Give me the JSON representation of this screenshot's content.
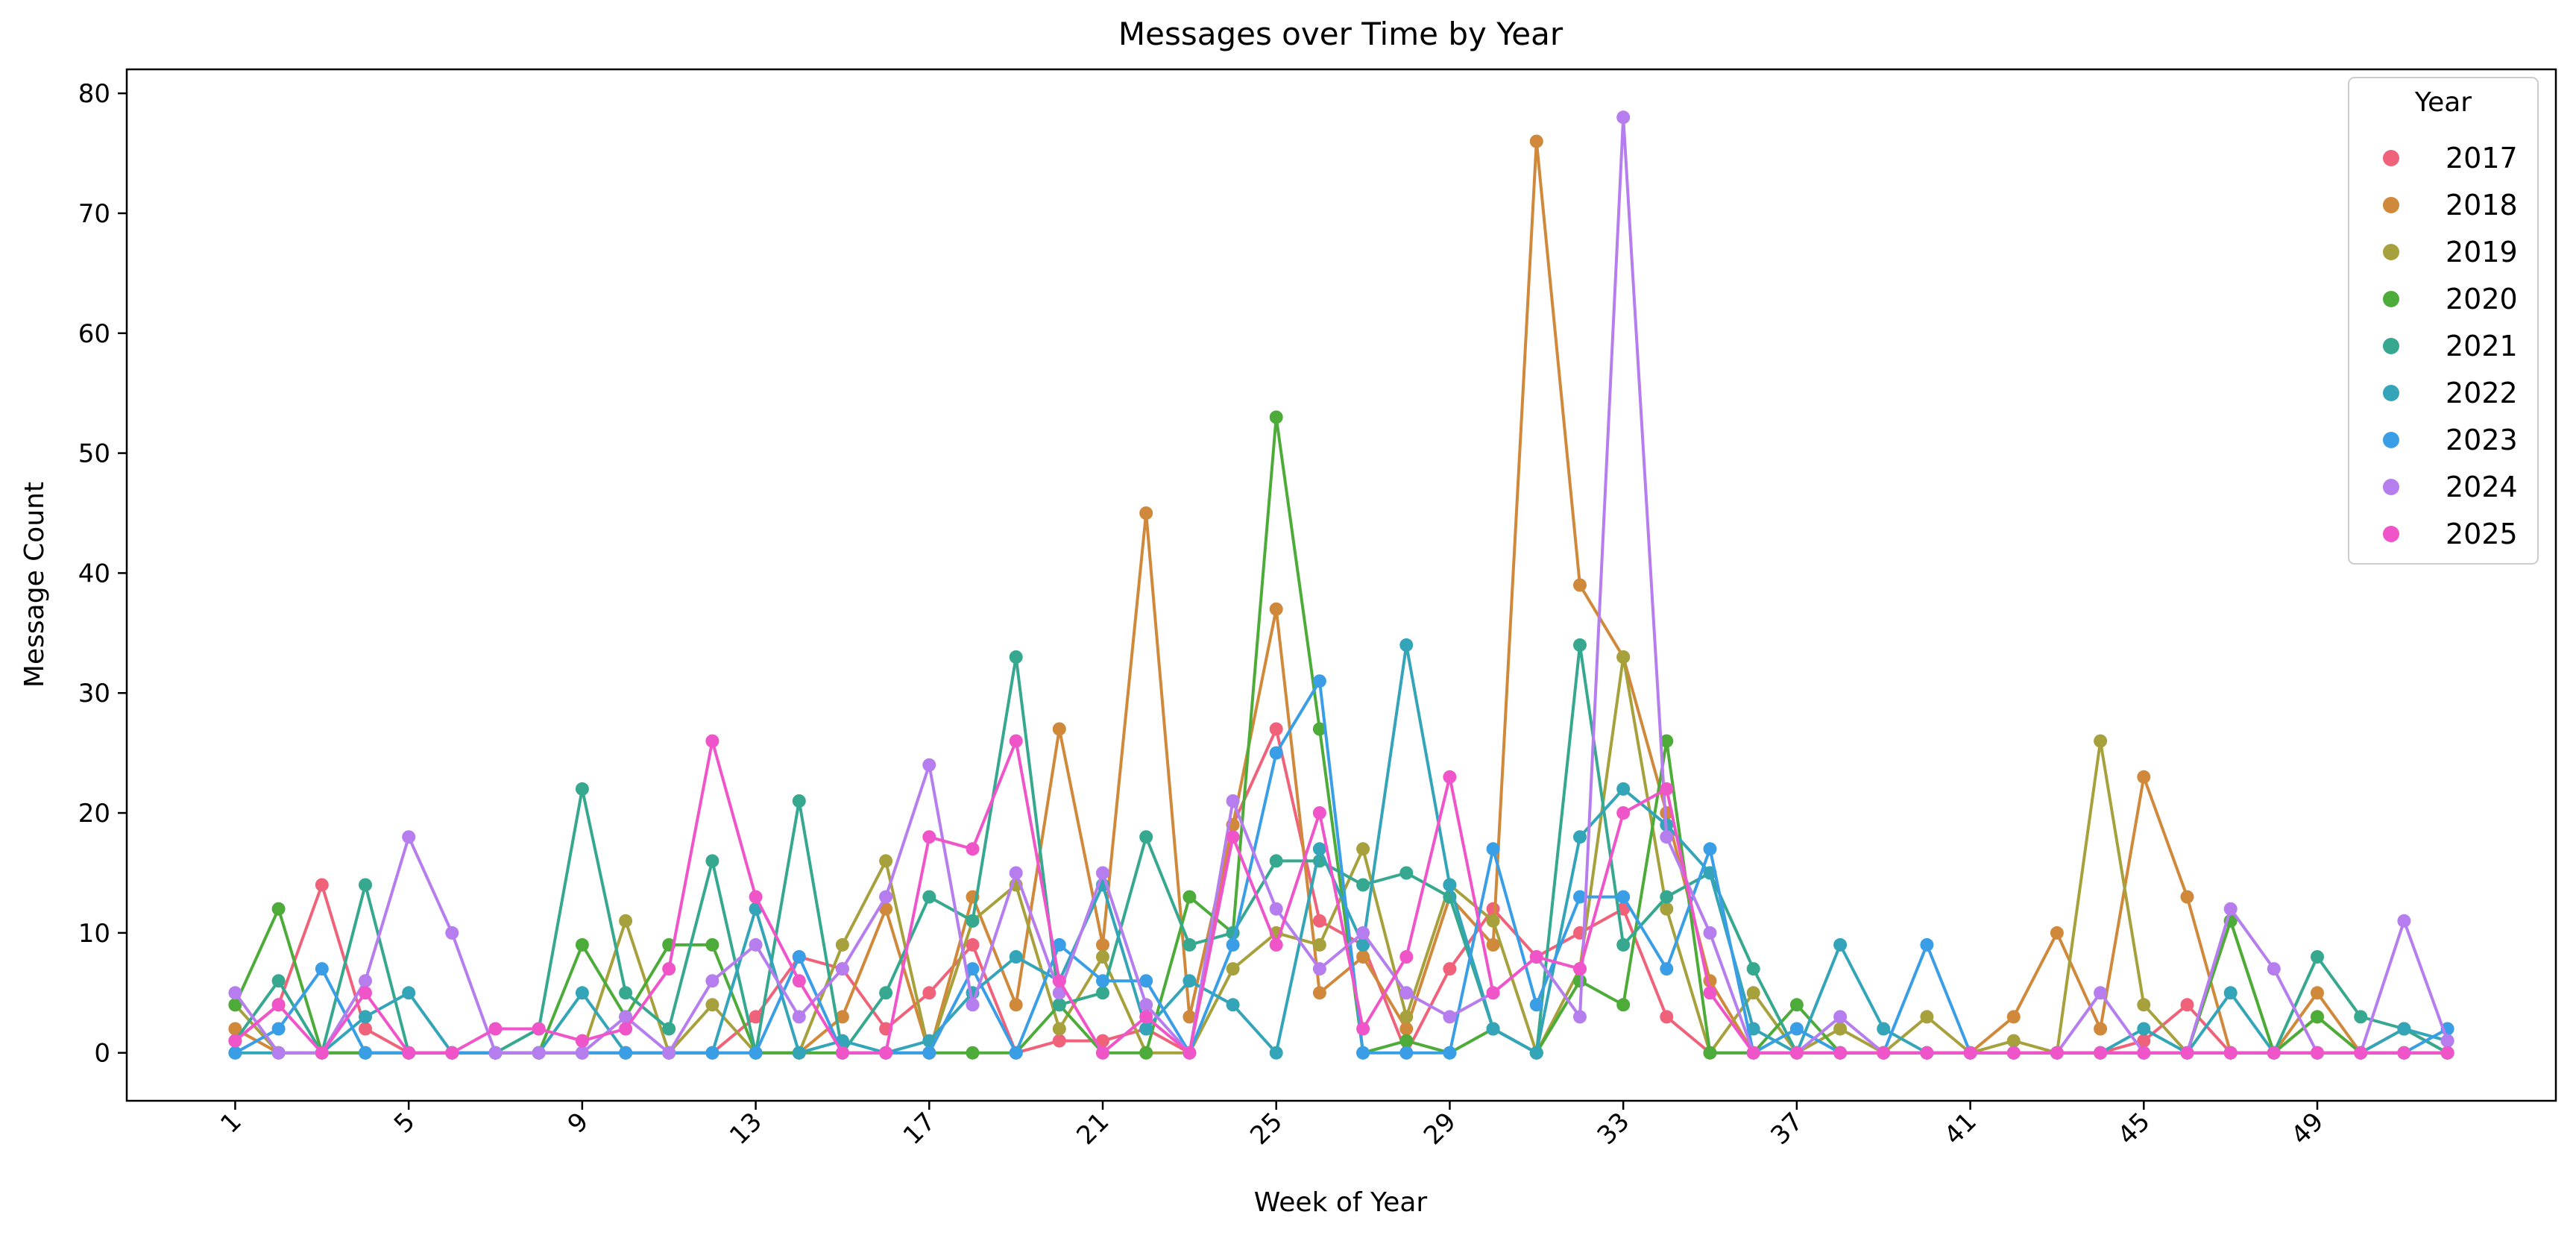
{
  "chart_data": {
    "type": "line",
    "title": "Messages over Time by Year",
    "xlabel": "Week of Year",
    "ylabel": "Message Count",
    "xlim": [
      -1.5,
      54.5
    ],
    "ylim": [
      -4,
      82
    ],
    "x_ticks": [
      1,
      5,
      9,
      13,
      17,
      21,
      25,
      29,
      33,
      37,
      41,
      45,
      49
    ],
    "x_tick_labels": [
      "1",
      "5",
      "9",
      "13",
      "17",
      "21",
      "25",
      "29",
      "33",
      "37",
      "41",
      "45",
      "49"
    ],
    "y_ticks": [
      0,
      10,
      20,
      30,
      40,
      50,
      60,
      70,
      80
    ],
    "y_tick_labels": [
      "0",
      "10",
      "20",
      "30",
      "40",
      "50",
      "60",
      "70",
      "80"
    ],
    "grid": false,
    "legend": {
      "title": "Year",
      "placement": "top-right"
    },
    "x": [
      1,
      2,
      3,
      4,
      5,
      6,
      7,
      8,
      9,
      10,
      11,
      12,
      13,
      14,
      15,
      16,
      17,
      18,
      19,
      20,
      21,
      22,
      23,
      24,
      25,
      26,
      27,
      28,
      29,
      30,
      31,
      32,
      33,
      34,
      35,
      36,
      37,
      38,
      39,
      40,
      41,
      42,
      43,
      44,
      45,
      46,
      47,
      48,
      49,
      50,
      51,
      52
    ],
    "series": [
      {
        "name": "2017",
        "color": "#f0627a",
        "values": [
          1,
          4,
          14,
          2,
          0,
          0,
          0,
          0,
          0,
          0,
          0,
          0,
          3,
          8,
          7,
          2,
          5,
          9,
          0,
          1,
          1,
          2,
          0,
          19,
          27,
          11,
          9,
          0,
          7,
          12,
          8,
          10,
          12,
          3,
          0,
          0,
          0,
          0,
          0,
          0,
          0,
          0,
          0,
          0,
          1,
          4,
          0,
          0,
          0,
          0,
          0,
          0
        ]
      },
      {
        "name": "2018",
        "color": "#d0883a",
        "values": [
          2,
          0,
          0,
          0,
          0,
          0,
          0,
          0,
          0,
          0,
          0,
          0,
          0,
          0,
          3,
          12,
          0,
          13,
          4,
          27,
          9,
          45,
          3,
          19,
          37,
          5,
          8,
          2,
          13,
          9,
          76,
          39,
          33,
          20,
          6,
          0,
          0,
          0,
          0,
          0,
          0,
          3,
          10,
          2,
          23,
          13,
          0,
          0,
          5,
          0,
          2,
          0
        ]
      },
      {
        "name": "2019",
        "color": "#a7a13d",
        "values": [
          4,
          0,
          0,
          0,
          0,
          0,
          0,
          0,
          0,
          11,
          0,
          4,
          0,
          0,
          9,
          16,
          0,
          11,
          14,
          2,
          8,
          0,
          0,
          7,
          10,
          9,
          17,
          3,
          14,
          11,
          0,
          7,
          33,
          12,
          0,
          5,
          0,
          2,
          0,
          3,
          0,
          1,
          0,
          26,
          4,
          0,
          11,
          0,
          3,
          0,
          0,
          0
        ]
      },
      {
        "name": "2020",
        "color": "#4dac39",
        "values": [
          4,
          12,
          0,
          0,
          0,
          0,
          0,
          0,
          9,
          3,
          9,
          9,
          0,
          0,
          0,
          0,
          0,
          0,
          0,
          4,
          0,
          0,
          13,
          10,
          53,
          27,
          0,
          1,
          0,
          2,
          0,
          6,
          4,
          26,
          0,
          0,
          4,
          0,
          0,
          0,
          0,
          0,
          0,
          0,
          0,
          0,
          11,
          0,
          3,
          0,
          0,
          0
        ]
      },
      {
        "name": "2021",
        "color": "#36a88f",
        "values": [
          1,
          6,
          0,
          14,
          0,
          0,
          0,
          2,
          22,
          5,
          2,
          16,
          0,
          21,
          0,
          5,
          13,
          11,
          33,
          4,
          5,
          18,
          9,
          10,
          16,
          16,
          14,
          15,
          13,
          2,
          0,
          34,
          9,
          13,
          15,
          7,
          0,
          0,
          0,
          0,
          0,
          0,
          0,
          0,
          0,
          0,
          0,
          0,
          8,
          3,
          2,
          0
        ]
      },
      {
        "name": "2022",
        "color": "#34a5b8",
        "values": [
          0,
          0,
          0,
          3,
          5,
          0,
          0,
          0,
          5,
          0,
          0,
          0,
          12,
          0,
          1,
          0,
          1,
          5,
          8,
          6,
          14,
          2,
          6,
          4,
          0,
          17,
          9,
          34,
          14,
          2,
          0,
          18,
          22,
          19,
          15,
          2,
          0,
          9,
          2,
          0,
          0,
          0,
          0,
          0,
          2,
          0,
          5,
          0,
          0,
          0,
          2,
          1
        ]
      },
      {
        "name": "2023",
        "color": "#3a9ee6",
        "values": [
          0,
          2,
          7,
          0,
          0,
          0,
          0,
          0,
          0,
          0,
          0,
          0,
          0,
          8,
          0,
          0,
          0,
          7,
          0,
          9,
          6,
          6,
          0,
          9,
          25,
          31,
          0,
          0,
          0,
          17,
          4,
          13,
          13,
          7,
          17,
          0,
          2,
          0,
          0,
          9,
          0,
          0,
          0,
          0,
          0,
          0,
          0,
          0,
          0,
          0,
          0,
          2
        ]
      },
      {
        "name": "2024",
        "color": "#b57ded",
        "values": [
          5,
          0,
          0,
          6,
          18,
          10,
          0,
          0,
          0,
          3,
          0,
          6,
          9,
          3,
          7,
          13,
          24,
          4,
          15,
          5,
          15,
          4,
          0,
          21,
          12,
          7,
          10,
          5,
          3,
          5,
          8,
          3,
          78,
          18,
          10,
          0,
          0,
          3,
          0,
          0,
          0,
          0,
          0,
          5,
          0,
          0,
          12,
          7,
          0,
          0,
          11,
          1
        ]
      },
      {
        "name": "2025",
        "color": "#ef55c9",
        "values": [
          1,
          4,
          0,
          5,
          0,
          0,
          2,
          2,
          1,
          2,
          7,
          26,
          13,
          6,
          0,
          0,
          18,
          17,
          26,
          6,
          0,
          3,
          0,
          18,
          9,
          20,
          2,
          8,
          23,
          5,
          8,
          7,
          20,
          22,
          5,
          0,
          0,
          0,
          0,
          0,
          0,
          0,
          0,
          0,
          0,
          0,
          0,
          0,
          0,
          0,
          0,
          0
        ]
      }
    ]
  }
}
